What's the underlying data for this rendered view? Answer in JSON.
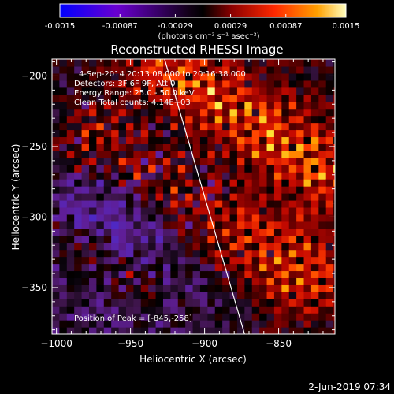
{
  "colorbar": {
    "tick_labels": [
      "-0.0015",
      "-0.00087",
      "-0.00029",
      "0.00029",
      "0.00087",
      "0.0015"
    ],
    "tick_values": [
      -0.0015,
      -0.00087,
      -0.00029,
      0.00029,
      0.00087,
      0.0015
    ],
    "range": [
      -0.0015,
      0.0015
    ],
    "units_label": "(photons cm⁻² s⁻¹ asec⁻²)",
    "colors": [
      "#0000ff",
      "#5500dd",
      "#8800aa",
      "#000000",
      "#aa0000",
      "#ff3300",
      "#ff9900",
      "#ffffaa"
    ]
  },
  "chart_data": {
    "type": "heatmap",
    "title": "Reconstructed RHESSI Image",
    "xlabel": "Heliocentric X (arcsec)",
    "ylabel": "Heliocentric Y (arcsec)",
    "xlim": [
      -1003,
      -812
    ],
    "ylim": [
      -383,
      -188
    ],
    "x_ticks": [
      -1000,
      -950,
      -900,
      -850
    ],
    "x_tick_labels": [
      "−1000",
      "−950",
      "−900",
      "−850"
    ],
    "y_ticks": [
      -200,
      -250,
      -300,
      -350
    ],
    "y_tick_labels": [
      "−200",
      "−250",
      "−300",
      "−350"
    ],
    "peak": [
      -845,
      -258
    ],
    "limb_line": [
      [
        -927,
        -188
      ],
      [
        -873,
        -383
      ]
    ],
    "annotations": [
      "4-Sep-2014 20:13:08.000 to 20:16:38.000",
      "Detectors: 3F 6F 9F, Att 0",
      "Energy Range: 25.0 - 50.0 keV",
      "Clean    Total counts: 4.14E+03"
    ],
    "peak_text": "Position of Peak = [-845,-258]",
    "emission_bands": [
      {
        "p1": [
          -975,
          -245
        ],
        "p2": [
          -835,
          -340
        ],
        "width": 45,
        "peak": 0.9
      },
      {
        "p1": [
          -925,
          -195
        ],
        "p2": [
          -820,
          -265
        ],
        "width": 45,
        "peak": 1.0
      },
      {
        "p1": [
          -1000,
          -320
        ],
        "p2": [
          -940,
          -345
        ],
        "width": 30,
        "peak": 0.55
      }
    ],
    "negative_region": {
      "center": [
        -955,
        -295
      ],
      "radius": 55,
      "min": -0.55
    }
  },
  "footer_timestamp": "2-Jun-2019 07:34"
}
